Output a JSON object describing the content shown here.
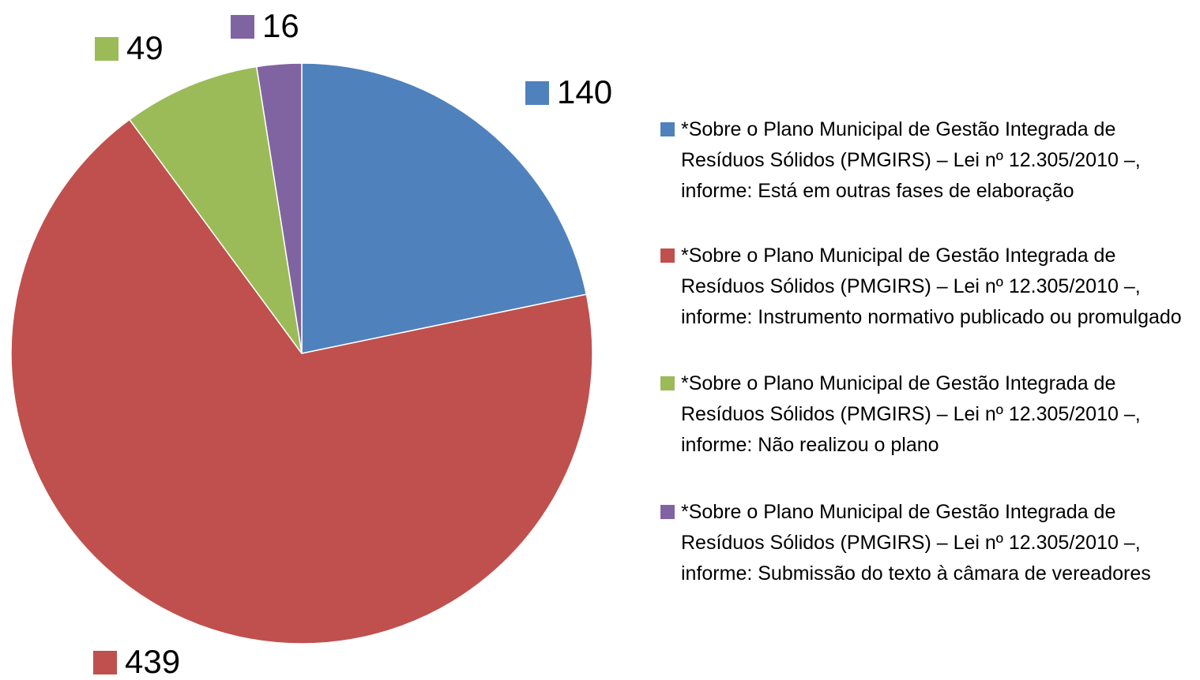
{
  "chart_data": {
    "type": "pie",
    "categories": [
      "*Sobre o Plano Municipal de Gestão Integrada de Resíduos Sólidos (PMGIRS) – Lei nº 12.305/2010 –, informe: Está em outras fases de elaboração",
      "*Sobre o Plano Municipal de Gestão Integrada de Resíduos Sólidos (PMGIRS) – Lei nº 12.305/2010 –, informe: Instrumento normativo publicado ou promulgado",
      "*Sobre o Plano Municipal de Gestão Integrada de Resíduos Sólidos (PMGIRS) – Lei nº 12.305/2010 –, informe: Não realizou o plano",
      "*Sobre o Plano Municipal de Gestão Integrada de Resíduos Sólidos (PMGIRS) – Lei nº 12.305/2010 –, informe: Submissão do texto à câmara de vereadores"
    ],
    "values": [
      140,
      439,
      49,
      16
    ],
    "colors": [
      "#4f81bd",
      "#c0504d",
      "#9bbb59",
      "#8064a2"
    ],
    "legend": "right"
  }
}
